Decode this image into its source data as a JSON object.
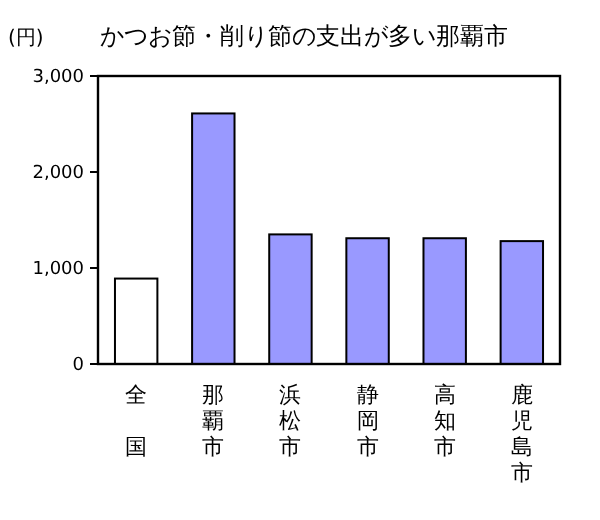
{
  "chart_data": {
    "type": "bar",
    "title": "かつお節・削り節の支出が多い那覇市",
    "ylabel": "(円)",
    "categories": [
      "全国",
      "那覇市",
      "浜松市",
      "静岡市",
      "高知市",
      "鹿児島市"
    ],
    "values": [
      890,
      2610,
      1350,
      1310,
      1310,
      1280
    ],
    "colors": [
      "#ffffff",
      "#9999ff",
      "#9999ff",
      "#9999ff",
      "#9999ff",
      "#9999ff"
    ],
    "ylim": [
      0,
      3000
    ],
    "yticks": [
      {
        "value": 0,
        "label": "0"
      },
      {
        "value": 1000,
        "label": "1,000"
      },
      {
        "value": 2000,
        "label": "2,000"
      },
      {
        "value": 3000,
        "label": "3,000"
      }
    ],
    "grid": false
  }
}
